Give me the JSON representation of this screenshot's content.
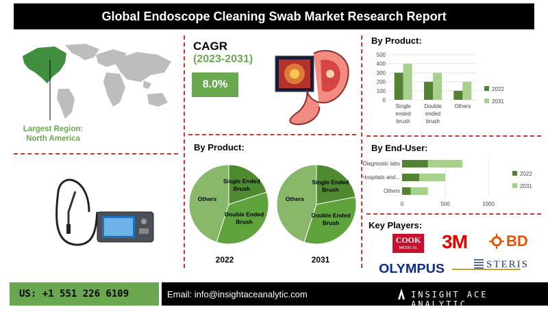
{
  "title": "Global Endoscope Cleaning Swab Market  Research Report",
  "region": {
    "label_line1": "Largest Region:",
    "label_line2": "North America"
  },
  "cagr": {
    "label": "CAGR",
    "period": "(2023-2031)",
    "value": "8.0%"
  },
  "pie_section_title": "By Product:",
  "product_section_title": "By Product:",
  "enduser_section_title": "By End-User:",
  "key_players": {
    "title": "Key Players:",
    "logos": {
      "cook": "COOK",
      "cook_sub": "MEDICAL",
      "threem": "3M",
      "bd": "BD",
      "olympus": "OLYMPUS",
      "steris": "STERIS"
    }
  },
  "footer": {
    "phone": "US: +1 551 226 6109",
    "email": "Email: info@insightaceanalytic.com",
    "brand": "INSIGHT ACE ANALYTIC"
  },
  "colors": {
    "dark_green": "#548235",
    "light_green": "#a9d18e",
    "mid_green": "#6aa84f",
    "pie_light": "#8ab86a",
    "accent_red": "#c0392b"
  },
  "chart_data": [
    {
      "type": "bar",
      "title": "By Product:",
      "categories": [
        "Single ended brush",
        "Double ended brush",
        "Others"
      ],
      "series": [
        {
          "name": "2022",
          "values": [
            300,
            200,
            100
          ]
        },
        {
          "name": "2031",
          "values": [
            400,
            300,
            200
          ]
        }
      ],
      "ylim": [
        0,
        500
      ],
      "yticks": [
        "0",
        "100",
        "200",
        "300",
        "400",
        "500"
      ],
      "legend": "right"
    },
    {
      "type": "bar",
      "orientation": "horizontal",
      "title": "By End-User:",
      "categories": [
        "Diagnostic labs",
        "Hospitals and...",
        "Others"
      ],
      "series": [
        {
          "name": "2022",
          "values": [
            300,
            200,
            100
          ]
        },
        {
          "name": "2031",
          "values": [
            400,
            300,
            200
          ]
        }
      ],
      "xlim": [
        0,
        1000
      ],
      "xticks": [
        "0",
        "500",
        "1000"
      ],
      "legend": "right"
    },
    {
      "type": "pie",
      "title": "2022",
      "labels": [
        "Single Ended Brush",
        "Double Ended Brush",
        "Others"
      ],
      "values": [
        20,
        35,
        45
      ]
    },
    {
      "type": "pie",
      "title": "2031",
      "labels": [
        "Single Ended Brush",
        "Double Ended Brush",
        "Others"
      ],
      "values": [
        22,
        33,
        45
      ]
    }
  ]
}
